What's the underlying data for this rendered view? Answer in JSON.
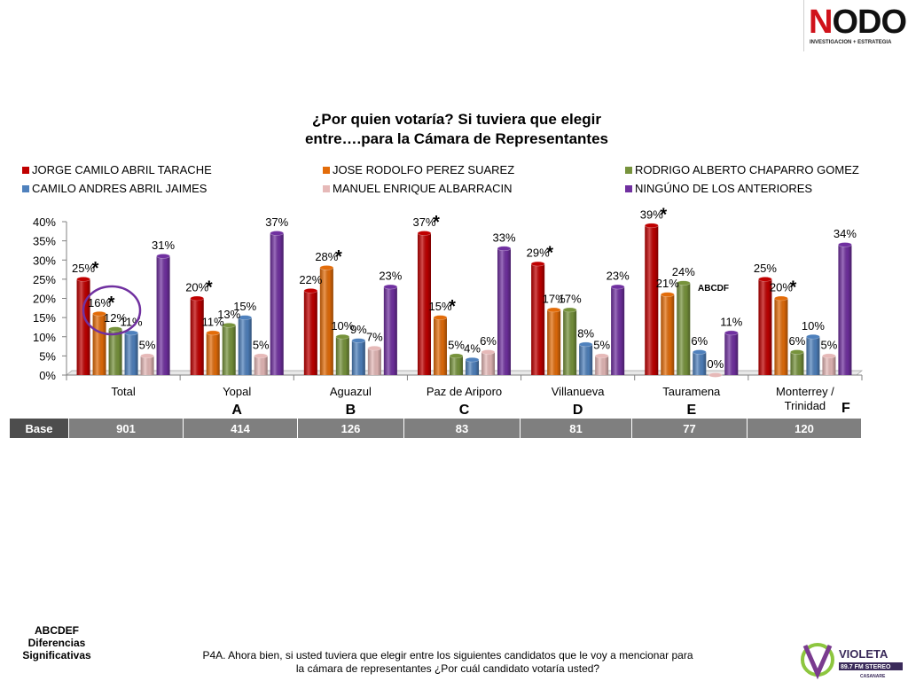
{
  "brand": {
    "logo_main": "NODO",
    "logo_sub": "INVESTIGACION + ESTRATEGIA"
  },
  "chart_data": {
    "type": "bar",
    "title_line1": "¿Por quien votaría? Si tuviera que elegir",
    "title_line2": "entre….para la Cámara de Representantes",
    "categories": [
      "Total",
      "Yopal",
      "Aguazul",
      "Paz de Ariporo",
      "Villanueva",
      "Tauramena",
      "Monterrey /\nTrinidad"
    ],
    "category_letters": [
      "",
      "A",
      "B",
      "C",
      "D",
      "E",
      "F"
    ],
    "y_ticks": [
      "0%",
      "5%",
      "10%",
      "15%",
      "20%",
      "25%",
      "30%",
      "35%",
      "40%"
    ],
    "ylim": [
      0,
      40
    ],
    "series": [
      {
        "name": "JORGE CAMILO ABRIL TARACHE",
        "color": "#c00000",
        "values": [
          25,
          20,
          22,
          37,
          29,
          39,
          25
        ]
      },
      {
        "name": "JOSE RODOLFO PEREZ SUAREZ",
        "color": "#e36c09",
        "values": [
          16,
          11,
          28,
          15,
          17,
          21,
          20
        ]
      },
      {
        "name": "RODRIGO ALBERTO CHAPARRO GOMEZ",
        "color": "#77933c",
        "values": [
          12,
          13,
          10,
          5,
          17,
          24,
          6
        ]
      },
      {
        "name": "CAMILO ANDRES ABRIL JAIMES",
        "color": "#4f81bd",
        "values": [
          11,
          15,
          9,
          4,
          8,
          6,
          10
        ]
      },
      {
        "name": "MANUEL ENRIQUE ALBARRACIN",
        "color": "#e6b9b8",
        "values": [
          5,
          5,
          7,
          6,
          5,
          0,
          5
        ]
      },
      {
        "name": "NINGÚNO DE LOS ANTERIORES",
        "color": "#7030a0",
        "values": [
          31,
          37,
          23,
          33,
          23,
          11,
          34
        ]
      }
    ],
    "value_labels": [
      [
        "25%",
        "20%",
        "22%",
        "37%",
        "29%",
        "39%",
        "25%"
      ],
      [
        "16%",
        "11%",
        "28%",
        "15%",
        "17%",
        "21%",
        "20%"
      ],
      [
        "12%",
        "13%",
        "10%",
        "5%",
        "17%",
        "24%",
        "6%"
      ],
      [
        "11%",
        "15%",
        "9%",
        "4%",
        "8%",
        "6%",
        "10%"
      ],
      [
        "5%",
        "5%",
        "7%",
        "6%",
        "5%",
        "0%",
        "5%"
      ],
      [
        "31%",
        "37%",
        "23%",
        "33%",
        "23%",
        "11%",
        "34%"
      ]
    ],
    "significance_star": "*",
    "significance_marks": [
      [
        0,
        0
      ],
      [
        0,
        1
      ],
      [
        1,
        0
      ],
      [
        2,
        1
      ],
      [
        3,
        0
      ],
      [
        3,
        1
      ],
      [
        4,
        0
      ],
      [
        5,
        0
      ],
      [
        6,
        1
      ]
    ],
    "annotation_text": "ABCDF",
    "legend_placement": "top",
    "grid": false
  },
  "base_table": {
    "label": "Base",
    "values": [
      "901",
      "414",
      "126",
      "83",
      "81",
      "77",
      "120"
    ]
  },
  "footnote_left": [
    "ABCDEF",
    "Diferencias",
    "Significativas"
  ],
  "footnote_bottom": [
    "P4A. Ahora bien, si usted tuviera que elegir entre los siguientes candidatos que le voy a mencionar para",
    "la cámara de representantes ¿Por cuál candidato votaría usted?"
  ],
  "sponsor": {
    "name": "VIOLETA",
    "freq": "89.7 FM  STEREO",
    "region": "CASANARE"
  }
}
